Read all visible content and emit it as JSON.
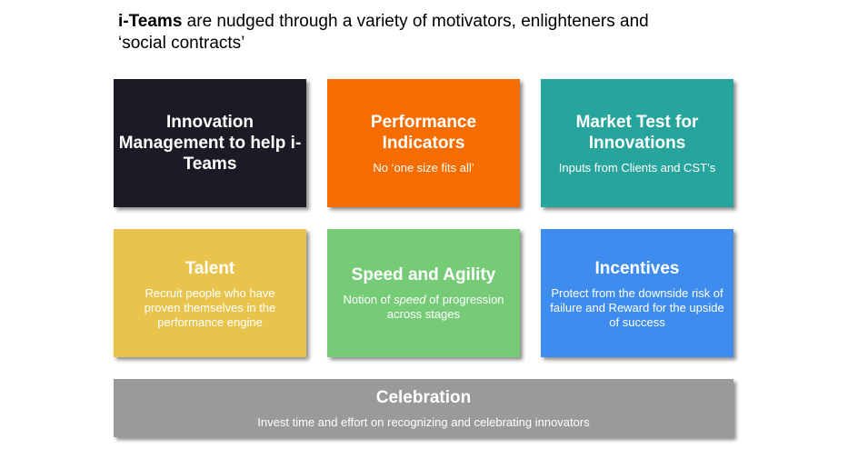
{
  "title": {
    "bold": "i-Teams",
    "rest_line1": " are nudged through a variety of motivators, enlighteners and",
    "rest_line2": "‘social contracts’"
  },
  "colors": {
    "innovation": "#1c1a24",
    "performance": "#f56c00",
    "market": "#27a59c",
    "talent": "#e8c44d",
    "speed": "#76cc76",
    "incentives": "#3e8ced",
    "celebration": "#9a9a9a"
  },
  "boxes": {
    "innovation": {
      "title": "Innovation Management to help i-Teams"
    },
    "performance": {
      "title": "Performance Indicators",
      "subtitle": "No ‘one size fits all’"
    },
    "market": {
      "title": "Market Test for Innovations",
      "subtitle": "Inputs from Clients and CST’s"
    },
    "talent": {
      "title": "Talent",
      "subtitle": "Recruit people who have proven themselves in the performance engine"
    },
    "speed": {
      "title": "Speed and Agility",
      "subtitle_before": "Notion of ",
      "subtitle_em": "speed",
      "subtitle_after": " of progression across stages"
    },
    "incentives": {
      "title": "Incentives",
      "subtitle": "Protect from the downside risk of failure and Reward for the upside of success"
    },
    "celebration": {
      "title": "Celebration",
      "subtitle": "Invest time and effort on recognizing and celebrating innovators"
    }
  }
}
